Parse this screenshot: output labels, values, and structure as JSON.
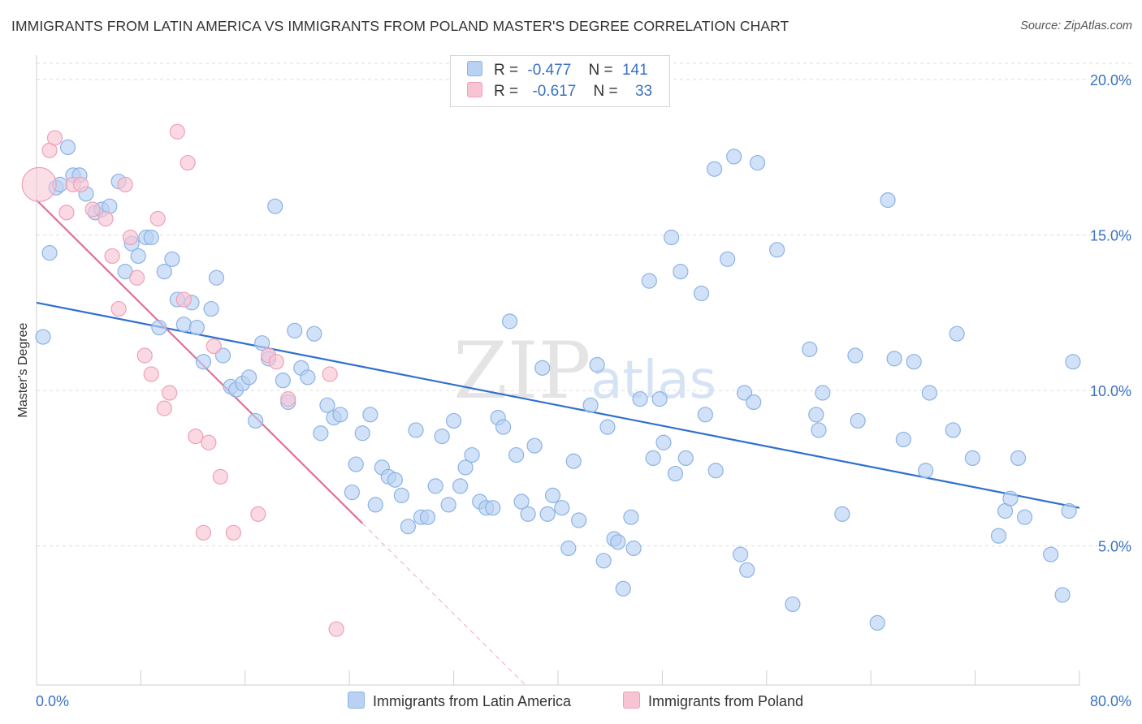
{
  "title": "IMMIGRANTS FROM LATIN AMERICA VS IMMIGRANTS FROM POLAND MASTER'S DEGREE CORRELATION CHART",
  "source": "Source: ZipAtlas.com",
  "watermark": "ZIPatlas",
  "colors": {
    "blue_fill": "#b9d1f2",
    "blue_stroke": "#8cb3e6",
    "blue_line": "#2f6fcf",
    "pink_fill": "#f8c4d4",
    "pink_stroke": "#efa0b8",
    "pink_line": "#e0709a",
    "axis_text": "#3a72c4",
    "grid": "#dcdcdc"
  },
  "legend_top": [
    {
      "r_label": "R =",
      "r_value": "-0.477",
      "n_label": "N =",
      "n_value": "141",
      "swatch": "#b9d1f2"
    },
    {
      "r_label": "R =",
      "r_value": "-0.617",
      "n_label": "N =",
      "n_value": "33",
      "swatch": "#f8c4d4"
    }
  ],
  "legend_bottom": [
    {
      "label": "Immigrants from Latin America",
      "swatch": "#b9d1f2"
    },
    {
      "label": "Immigrants from Poland",
      "swatch": "#f8c4d4"
    }
  ],
  "chart_data": {
    "type": "scatter",
    "title": "IMMIGRANTS FROM LATIN AMERICA VS IMMIGRANTS FROM POLAND MASTER'S DEGREE CORRELATION CHART",
    "xlabel": "",
    "ylabel": "Master's Degree",
    "xlim": [
      0,
      80
    ],
    "ylim": [
      0,
      20
    ],
    "x_tick_labels": [
      "0.0%",
      "80.0%"
    ],
    "y_ticks": [
      5,
      10,
      15,
      20
    ],
    "y_tick_labels": [
      "5.0%",
      "10.0%",
      "15.0%",
      "20.0%"
    ],
    "grid": "horizontal dashed",
    "legend_position": "top-center",
    "series": [
      {
        "name": "Immigrants from Latin America",
        "color": "#b9d1f2",
        "trend": {
          "x": [
            0,
            80
          ],
          "y": [
            12.3,
            5.7
          ]
        },
        "points": [
          [
            0.5,
            11.2
          ],
          [
            1.0,
            13.9
          ],
          [
            1.5,
            16.0
          ],
          [
            1.8,
            16.1
          ],
          [
            2.4,
            17.3
          ],
          [
            2.8,
            16.4
          ],
          [
            3.3,
            16.4
          ],
          [
            3.8,
            15.8
          ],
          [
            4.5,
            15.2
          ],
          [
            5.0,
            15.3
          ],
          [
            5.6,
            15.4
          ],
          [
            6.3,
            16.2
          ],
          [
            6.8,
            13.3
          ],
          [
            7.3,
            14.2
          ],
          [
            7.8,
            13.8
          ],
          [
            8.4,
            14.4
          ],
          [
            8.8,
            14.4
          ],
          [
            9.4,
            11.5
          ],
          [
            9.8,
            13.3
          ],
          [
            10.4,
            13.7
          ],
          [
            10.8,
            12.4
          ],
          [
            11.3,
            11.6
          ],
          [
            11.9,
            12.3
          ],
          [
            12.3,
            11.5
          ],
          [
            12.8,
            10.4
          ],
          [
            13.4,
            12.1
          ],
          [
            13.8,
            13.1
          ],
          [
            14.3,
            10.6
          ],
          [
            14.9,
            9.6
          ],
          [
            15.3,
            9.5
          ],
          [
            15.8,
            9.7
          ],
          [
            16.3,
            9.9
          ],
          [
            16.8,
            8.5
          ],
          [
            17.3,
            11.0
          ],
          [
            17.8,
            10.5
          ],
          [
            18.3,
            15.4
          ],
          [
            18.9,
            9.8
          ],
          [
            19.3,
            9.1
          ],
          [
            19.8,
            11.4
          ],
          [
            20.3,
            10.2
          ],
          [
            20.8,
            9.9
          ],
          [
            21.3,
            11.3
          ],
          [
            21.8,
            8.1
          ],
          [
            22.3,
            9.0
          ],
          [
            22.8,
            8.6
          ],
          [
            23.3,
            8.7
          ],
          [
            24.2,
            6.2
          ],
          [
            24.5,
            7.1
          ],
          [
            25.0,
            8.1
          ],
          [
            25.6,
            8.7
          ],
          [
            26.0,
            5.8
          ],
          [
            26.5,
            7.0
          ],
          [
            27.0,
            6.7
          ],
          [
            27.5,
            6.6
          ],
          [
            28.0,
            6.1
          ],
          [
            28.5,
            5.1
          ],
          [
            29.1,
            8.2
          ],
          [
            29.5,
            5.4
          ],
          [
            30.0,
            5.4
          ],
          [
            30.6,
            6.4
          ],
          [
            31.1,
            8.0
          ],
          [
            31.6,
            5.8
          ],
          [
            32.0,
            8.5
          ],
          [
            32.5,
            6.4
          ],
          [
            32.9,
            7.0
          ],
          [
            33.4,
            7.4
          ],
          [
            34.0,
            5.9
          ],
          [
            34.5,
            5.7
          ],
          [
            35.0,
            5.7
          ],
          [
            35.4,
            8.6
          ],
          [
            35.8,
            8.3
          ],
          [
            36.3,
            11.7
          ],
          [
            36.8,
            7.4
          ],
          [
            37.2,
            5.9
          ],
          [
            37.7,
            5.5
          ],
          [
            38.2,
            7.7
          ],
          [
            38.8,
            10.2
          ],
          [
            39.2,
            5.5
          ],
          [
            39.6,
            6.1
          ],
          [
            40.3,
            5.7
          ],
          [
            40.8,
            4.4
          ],
          [
            41.2,
            7.2
          ],
          [
            41.6,
            5.3
          ],
          [
            42.5,
            9.0
          ],
          [
            43.0,
            10.3
          ],
          [
            43.5,
            4.0
          ],
          [
            43.8,
            8.3
          ],
          [
            44.3,
            4.7
          ],
          [
            44.6,
            4.6
          ],
          [
            45.0,
            3.1
          ],
          [
            45.6,
            5.4
          ],
          [
            45.8,
            4.4
          ],
          [
            46.3,
            9.2
          ],
          [
            47.0,
            13.0
          ],
          [
            47.3,
            7.3
          ],
          [
            47.8,
            9.2
          ],
          [
            48.1,
            7.8
          ],
          [
            48.7,
            14.4
          ],
          [
            49.0,
            6.8
          ],
          [
            49.4,
            13.3
          ],
          [
            49.8,
            7.3
          ],
          [
            51.0,
            12.6
          ],
          [
            52.0,
            16.6
          ],
          [
            51.3,
            8.7
          ],
          [
            52.1,
            6.9
          ],
          [
            53.0,
            13.7
          ],
          [
            53.5,
            17.0
          ],
          [
            54.0,
            4.2
          ],
          [
            54.3,
            9.4
          ],
          [
            54.5,
            3.7
          ],
          [
            55.0,
            9.1
          ],
          [
            55.3,
            16.8
          ],
          [
            56.8,
            14.0
          ],
          [
            58.0,
            2.6
          ],
          [
            59.3,
            10.8
          ],
          [
            59.8,
            8.7
          ],
          [
            60.0,
            8.2
          ],
          [
            60.3,
            9.4
          ],
          [
            61.8,
            5.5
          ],
          [
            62.8,
            10.6
          ],
          [
            63.0,
            8.5
          ],
          [
            64.5,
            2.0
          ],
          [
            65.3,
            15.6
          ],
          [
            65.8,
            10.5
          ],
          [
            66.5,
            7.9
          ],
          [
            67.3,
            10.4
          ],
          [
            68.2,
            6.9
          ],
          [
            68.5,
            9.4
          ],
          [
            70.3,
            8.2
          ],
          [
            70.6,
            11.3
          ],
          [
            71.8,
            7.3
          ],
          [
            73.8,
            4.8
          ],
          [
            74.3,
            5.6
          ],
          [
            74.7,
            6.0
          ],
          [
            75.3,
            7.3
          ],
          [
            75.8,
            5.4
          ],
          [
            77.8,
            4.2
          ],
          [
            78.7,
            2.9
          ],
          [
            79.2,
            5.6
          ],
          [
            79.5,
            10.4
          ]
        ]
      },
      {
        "name": "Immigrants from Poland",
        "color": "#f8c4d4",
        "trend": {
          "x": [
            0,
            25
          ],
          "y": [
            15.6,
            5.2
          ],
          "dashed_extension": {
            "x": [
              25,
              37.5
            ],
            "y": [
              5.2,
              0
            ]
          }
        },
        "points": [
          [
            0.2,
            16.1
          ],
          [
            1.0,
            17.2
          ],
          [
            1.4,
            17.6
          ],
          [
            2.3,
            15.2
          ],
          [
            2.8,
            16.1
          ],
          [
            3.4,
            16.1
          ],
          [
            4.3,
            15.3
          ],
          [
            5.3,
            15.0
          ],
          [
            5.8,
            13.8
          ],
          [
            6.3,
            12.1
          ],
          [
            6.8,
            16.1
          ],
          [
            7.2,
            14.4
          ],
          [
            7.7,
            13.1
          ],
          [
            8.3,
            10.6
          ],
          [
            8.8,
            10.0
          ],
          [
            9.3,
            15.0
          ],
          [
            9.8,
            8.9
          ],
          [
            10.2,
            9.4
          ],
          [
            10.8,
            17.8
          ],
          [
            11.3,
            12.4
          ],
          [
            11.6,
            16.8
          ],
          [
            12.2,
            8.0
          ],
          [
            12.8,
            4.9
          ],
          [
            13.2,
            7.8
          ],
          [
            13.6,
            10.9
          ],
          [
            14.1,
            6.7
          ],
          [
            15.1,
            4.9
          ],
          [
            17.0,
            5.5
          ],
          [
            17.8,
            10.6
          ],
          [
            18.4,
            10.4
          ],
          [
            19.3,
            9.2
          ],
          [
            22.5,
            10.0
          ],
          [
            23.0,
            1.8
          ]
        ]
      }
    ]
  }
}
